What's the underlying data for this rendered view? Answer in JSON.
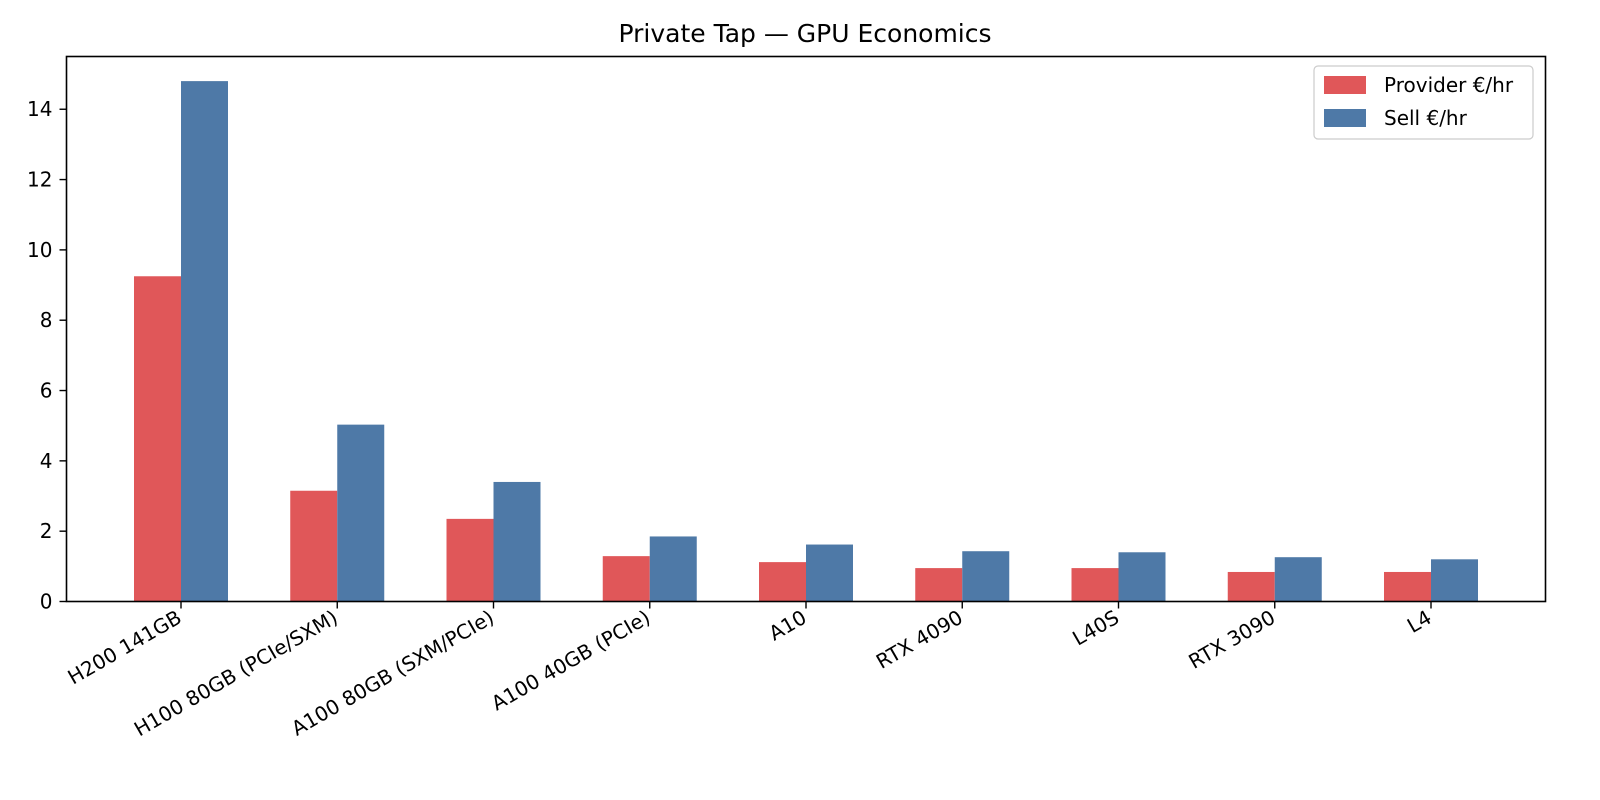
{
  "chart_data": {
    "type": "bar",
    "title": "Private Tap — GPU Economics",
    "xlabel": "",
    "ylabel": "",
    "categories": [
      "H200 141GB",
      "H100 80GB (PCIe/SXM)",
      "A100 80GB (SXM/PCIe)",
      "A100 40GB (PCIe)",
      "A10",
      "RTX 4090",
      "L40S",
      "RTX 3090",
      "L4"
    ],
    "series": [
      {
        "name": "Provider €/hr",
        "color": "#e05759",
        "values": [
          9.25,
          3.15,
          2.35,
          1.29,
          1.12,
          0.95,
          0.95,
          0.84,
          0.84
        ]
      },
      {
        "name": "Sell €/hr",
        "color": "#4e79a7",
        "values": [
          14.8,
          5.03,
          3.4,
          1.85,
          1.62,
          1.43,
          1.4,
          1.26,
          1.2
        ]
      }
    ],
    "ylim": [
      0,
      15.5
    ],
    "yticks": [
      0,
      2,
      4,
      6,
      8,
      10,
      12,
      14
    ],
    "legend": "top-right",
    "grid": false
  }
}
